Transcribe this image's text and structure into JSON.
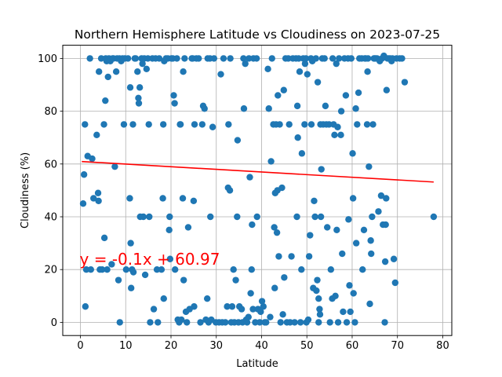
{
  "chart_data": {
    "type": "scatter",
    "title": "Northern Hemisphere Latitude vs Cloudiness on 2023-07-25",
    "xlabel": "Latitude",
    "ylabel": "Cloudiness (%)",
    "xlim": [
      -3.9,
      82
    ],
    "ylim": [
      -5,
      105
    ],
    "xticks": [
      0,
      10,
      20,
      30,
      40,
      50,
      60,
      70,
      80
    ],
    "yticks": [
      0,
      20,
      40,
      60,
      80,
      100
    ],
    "grid": true,
    "marker_color": "#1f77b4",
    "regression": {
      "slope": -0.1,
      "intercept": 60.97,
      "x_range": [
        0.3,
        78
      ],
      "label": "y = -0.1x + 60.97",
      "color": "#ff0000",
      "label_x": 0,
      "label_y": 24
    },
    "points": [
      [
        0.6,
        45
      ],
      [
        0.8,
        56
      ],
      [
        1.0,
        75
      ],
      [
        1.1,
        6
      ],
      [
        1.3,
        20
      ],
      [
        1.6,
        63
      ],
      [
        2.1,
        100
      ],
      [
        2.3,
        20
      ],
      [
        2.6,
        62
      ],
      [
        2.9,
        47
      ],
      [
        3.6,
        71
      ],
      [
        3.9,
        49
      ],
      [
        4.0,
        46
      ],
      [
        4.1,
        95
      ],
      [
        4.3,
        20
      ],
      [
        4.6,
        100
      ],
      [
        4.8,
        20
      ],
      [
        5.2,
        75
      ],
      [
        5.3,
        32
      ],
      [
        5.5,
        84
      ],
      [
        5.6,
        100
      ],
      [
        5.8,
        99
      ],
      [
        5.9,
        20
      ],
      [
        6.1,
        93
      ],
      [
        6.3,
        100
      ],
      [
        6.6,
        99
      ],
      [
        6.9,
        22
      ],
      [
        7.1,
        100
      ],
      [
        7.3,
        100
      ],
      [
        7.6,
        59
      ],
      [
        7.9,
        95
      ],
      [
        8.1,
        100
      ],
      [
        8.4,
        16
      ],
      [
        8.6,
        100
      ],
      [
        8.7,
        0
      ],
      [
        9.0,
        99
      ],
      [
        9.3,
        100
      ],
      [
        9.6,
        75
      ],
      [
        9.8,
        100
      ],
      [
        10.1,
        20
      ],
      [
        10.5,
        100
      ],
      [
        10.9,
        47
      ],
      [
        11.0,
        89
      ],
      [
        11.1,
        30
      ],
      [
        11.2,
        13
      ],
      [
        11.4,
        20
      ],
      [
        11.6,
        75
      ],
      [
        11.7,
        19
      ],
      [
        12.0,
        100
      ],
      [
        12.2,
        100
      ],
      [
        12.6,
        95
      ],
      [
        12.8,
        85
      ],
      [
        12.9,
        83
      ],
      [
        13.1,
        89
      ],
      [
        13.2,
        40
      ],
      [
        13.5,
        100
      ],
      [
        13.7,
        98
      ],
      [
        13.9,
        40
      ],
      [
        14.1,
        100
      ],
      [
        14.3,
        18
      ],
      [
        14.6,
        96
      ],
      [
        14.9,
        100
      ],
      [
        15.1,
        75
      ],
      [
        15.2,
        40
      ],
      [
        15.4,
        0
      ],
      [
        15.9,
        100
      ],
      [
        16.2,
        5
      ],
      [
        16.6,
        100
      ],
      [
        16.9,
        20
      ],
      [
        17.1,
        0
      ],
      [
        17.4,
        100
      ],
      [
        17.9,
        20
      ],
      [
        18.2,
        47
      ],
      [
        18.3,
        75
      ],
      [
        18.4,
        9
      ],
      [
        18.5,
        99
      ],
      [
        18.9,
        100
      ],
      [
        19.3,
        100
      ],
      [
        19.6,
        35
      ],
      [
        19.7,
        40
      ],
      [
        19.8,
        24
      ],
      [
        20.1,
        100
      ],
      [
        20.4,
        100
      ],
      [
        20.6,
        86
      ],
      [
        20.8,
        83
      ],
      [
        20.9,
        20
      ],
      [
        21.3,
        100
      ],
      [
        21.5,
        1
      ],
      [
        21.8,
        0
      ],
      [
        22.0,
        75
      ],
      [
        22.1,
        75
      ],
      [
        22.3,
        1
      ],
      [
        22.6,
        47
      ],
      [
        22.7,
        95
      ],
      [
        22.8,
        16
      ],
      [
        23.0,
        100
      ],
      [
        23.3,
        4
      ],
      [
        23.5,
        0
      ],
      [
        23.8,
        36
      ],
      [
        24.1,
        5
      ],
      [
        24.6,
        100
      ],
      [
        24.8,
        100
      ],
      [
        25.0,
        46
      ],
      [
        25.1,
        6
      ],
      [
        25.2,
        75
      ],
      [
        25.6,
        100
      ],
      [
        26.1,
        100
      ],
      [
        26.5,
        0
      ],
      [
        26.9,
        75
      ],
      [
        27.1,
        82
      ],
      [
        27.4,
        81
      ],
      [
        27.7,
        1
      ],
      [
        28.0,
        9
      ],
      [
        28.1,
        100
      ],
      [
        28.3,
        0
      ],
      [
        28.6,
        100
      ],
      [
        28.7,
        40
      ],
      [
        28.9,
        1
      ],
      [
        29.2,
        74
      ],
      [
        29.5,
        100
      ],
      [
        29.9,
        0
      ],
      [
        30.6,
        0
      ],
      [
        31.0,
        94
      ],
      [
        31.3,
        0
      ],
      [
        31.6,
        100
      ],
      [
        32.0,
        0
      ],
      [
        32.4,
        6
      ],
      [
        32.6,
        51
      ],
      [
        32.7,
        75
      ],
      [
        33.0,
        50
      ],
      [
        33.1,
        100
      ],
      [
        33.3,
        0
      ],
      [
        33.5,
        6
      ],
      [
        33.8,
        20
      ],
      [
        34.0,
        0
      ],
      [
        34.3,
        16
      ],
      [
        34.6,
        40
      ],
      [
        34.7,
        69
      ],
      [
        34.9,
        0
      ],
      [
        35.1,
        6
      ],
      [
        35.6,
        5
      ],
      [
        35.8,
        0
      ],
      [
        36.0,
        100
      ],
      [
        36.1,
        81
      ],
      [
        36.4,
        98
      ],
      [
        36.6,
        1
      ],
      [
        36.8,
        0
      ],
      [
        37.1,
        2
      ],
      [
        37.2,
        100
      ],
      [
        37.4,
        55
      ],
      [
        37.6,
        11
      ],
      [
        37.8,
        20
      ],
      [
        37.9,
        37
      ],
      [
        38.1,
        5
      ],
      [
        38.2,
        100
      ],
      [
        38.6,
        0
      ],
      [
        38.9,
        100
      ],
      [
        39.0,
        40
      ],
      [
        39.2,
        5
      ],
      [
        39.6,
        0
      ],
      [
        39.8,
        4
      ],
      [
        40.1,
        8
      ],
      [
        40.4,
        6
      ],
      [
        40.7,
        0
      ],
      [
        41.0,
        0
      ],
      [
        41.4,
        96
      ],
      [
        41.6,
        81
      ],
      [
        41.9,
        2
      ],
      [
        42.1,
        61
      ],
      [
        42.3,
        100
      ],
      [
        42.6,
        75
      ],
      [
        42.8,
        36
      ],
      [
        42.9,
        13
      ],
      [
        43.0,
        49
      ],
      [
        43.2,
        75
      ],
      [
        43.4,
        34
      ],
      [
        43.5,
        50
      ],
      [
        43.6,
        86
      ],
      [
        43.8,
        25
      ],
      [
        44.0,
        75
      ],
      [
        44.2,
        0
      ],
      [
        44.5,
        51
      ],
      [
        44.7,
        3
      ],
      [
        44.9,
        88
      ],
      [
        45.0,
        17
      ],
      [
        45.3,
        100
      ],
      [
        45.6,
        0
      ],
      [
        45.9,
        100
      ],
      [
        46.1,
        75
      ],
      [
        46.3,
        0
      ],
      [
        46.6,
        25
      ],
      [
        46.9,
        100
      ],
      [
        47.3,
        0
      ],
      [
        47.6,
        100
      ],
      [
        47.8,
        40
      ],
      [
        47.9,
        82
      ],
      [
        48.0,
        70
      ],
      [
        48.2,
        100
      ],
      [
        48.4,
        95
      ],
      [
        48.6,
        0
      ],
      [
        48.8,
        20
      ],
      [
        48.9,
        64
      ],
      [
        49.2,
        100
      ],
      [
        49.5,
        75
      ],
      [
        49.6,
        98
      ],
      [
        49.8,
        100
      ],
      [
        49.9,
        0
      ],
      [
        50.1,
        94
      ],
      [
        50.3,
        1
      ],
      [
        50.5,
        25
      ],
      [
        50.7,
        33
      ],
      [
        50.9,
        100
      ],
      [
        51.0,
        75
      ],
      [
        51.2,
        99
      ],
      [
        51.4,
        13
      ],
      [
        51.6,
        46
      ],
      [
        51.8,
        40
      ],
      [
        52.0,
        100
      ],
      [
        52.1,
        12
      ],
      [
        52.3,
        16
      ],
      [
        52.4,
        91
      ],
      [
        52.6,
        9
      ],
      [
        52.6,
        0
      ],
      [
        52.8,
        5
      ],
      [
        52.9,
        3
      ],
      [
        53.0,
        75
      ],
      [
        53.1,
        40
      ],
      [
        53.2,
        58
      ],
      [
        53.4,
        100
      ],
      [
        53.6,
        75
      ],
      [
        53.9,
        100
      ],
      [
        54.1,
        82
      ],
      [
        54.3,
        75
      ],
      [
        54.5,
        36
      ],
      [
        54.9,
        75
      ],
      [
        55.1,
        0
      ],
      [
        55.3,
        20
      ],
      [
        55.6,
        9
      ],
      [
        55.7,
        100
      ],
      [
        55.9,
        75
      ],
      [
        56.1,
        71
      ],
      [
        56.3,
        10
      ],
      [
        56.5,
        98
      ],
      [
        56.6,
        35
      ],
      [
        56.8,
        74
      ],
      [
        56.9,
        0
      ],
      [
        57.1,
        100
      ],
      [
        57.5,
        71
      ],
      [
        57.6,
        80
      ],
      [
        57.8,
        26
      ],
      [
        58.0,
        4
      ],
      [
        58.3,
        100
      ],
      [
        58.6,
        86
      ],
      [
        58.8,
        0
      ],
      [
        59.1,
        100
      ],
      [
        59.2,
        39
      ],
      [
        59.4,
        14
      ],
      [
        59.6,
        4
      ],
      [
        59.8,
        100
      ],
      [
        60.1,
        64
      ],
      [
        60.2,
        47
      ],
      [
        60.3,
        11
      ],
      [
        60.6,
        0
      ],
      [
        60.8,
        81
      ],
      [
        60.9,
        30
      ],
      [
        61.1,
        75
      ],
      [
        61.4,
        87
      ],
      [
        61.6,
        100
      ],
      [
        62.1,
        100
      ],
      [
        62.3,
        20
      ],
      [
        62.6,
        35
      ],
      [
        62.8,
        100
      ],
      [
        63.0,
        100
      ],
      [
        63.3,
        75
      ],
      [
        63.4,
        95
      ],
      [
        63.5,
        100
      ],
      [
        63.7,
        59
      ],
      [
        63.9,
        7
      ],
      [
        64.1,
        31
      ],
      [
        64.2,
        26
      ],
      [
        64.4,
        40
      ],
      [
        64.6,
        75
      ],
      [
        64.8,
        100
      ],
      [
        65.0,
        100
      ],
      [
        65.2,
        100
      ],
      [
        65.5,
        100
      ],
      [
        65.8,
        42
      ],
      [
        66.1,
        99
      ],
      [
        66.4,
        48
      ],
      [
        66.6,
        100
      ],
      [
        66.8,
        37
      ],
      [
        67.0,
        101
      ],
      [
        67.2,
        0
      ],
      [
        67.3,
        23
      ],
      [
        67.4,
        37
      ],
      [
        67.5,
        47
      ],
      [
        67.6,
        88
      ],
      [
        67.8,
        100
      ],
      [
        68.1,
        100
      ],
      [
        68.4,
        100
      ],
      [
        68.7,
        99
      ],
      [
        68.9,
        100
      ],
      [
        69.2,
        24
      ],
      [
        69.5,
        15
      ],
      [
        69.8,
        100
      ],
      [
        70.5,
        100
      ],
      [
        71.0,
        100
      ],
      [
        71.6,
        91
      ],
      [
        78.0,
        40
      ]
    ]
  }
}
